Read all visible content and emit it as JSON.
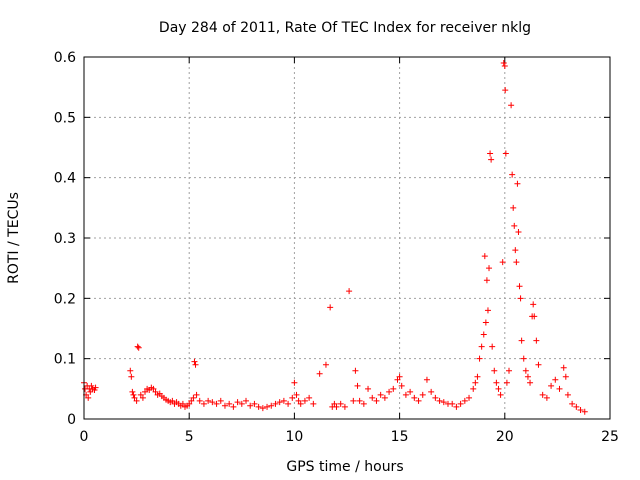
{
  "chart_data": {
    "type": "scatter",
    "title": "Day 284 of 2011, Rate Of TEC Index for receiver nklg",
    "xlabel": "GPS time / hours",
    "ylabel": "ROTI / TECUs",
    "xlim": [
      0,
      25
    ],
    "ylim": [
      0,
      0.6
    ],
    "x_ticks": [
      0,
      5,
      10,
      15,
      20,
      25
    ],
    "x_tick_labels": [
      "0",
      "5",
      "10",
      "15",
      "20",
      "25"
    ],
    "y_ticks": [
      0,
      0.1,
      0.2,
      0.3,
      0.4,
      0.5,
      0.6
    ],
    "y_tick_labels": [
      "0",
      "0.1",
      "0.2",
      "0.3",
      "0.4",
      "0.5",
      "0.6"
    ],
    "grid": true,
    "marker": "+",
    "marker_color": "#ff0000",
    "series": [
      {
        "name": "ROTI",
        "points": [
          [
            0.0,
            0.06
          ],
          [
            0.05,
            0.05
          ],
          [
            0.1,
            0.04
          ],
          [
            0.15,
            0.055
          ],
          [
            0.2,
            0.035
          ],
          [
            0.25,
            0.05
          ],
          [
            0.3,
            0.045
          ],
          [
            0.35,
            0.055
          ],
          [
            0.4,
            0.05
          ],
          [
            0.5,
            0.048
          ],
          [
            0.55,
            0.052
          ],
          [
            2.2,
            0.08
          ],
          [
            2.25,
            0.07
          ],
          [
            2.3,
            0.045
          ],
          [
            2.35,
            0.04
          ],
          [
            2.4,
            0.035
          ],
          [
            2.5,
            0.03
          ],
          [
            2.55,
            0.12
          ],
          [
            2.6,
            0.118
          ],
          [
            2.7,
            0.04
          ],
          [
            2.8,
            0.035
          ],
          [
            2.9,
            0.045
          ],
          [
            3.0,
            0.05
          ],
          [
            3.1,
            0.048
          ],
          [
            3.2,
            0.052
          ],
          [
            3.3,
            0.05
          ],
          [
            3.4,
            0.045
          ],
          [
            3.5,
            0.04
          ],
          [
            3.6,
            0.042
          ],
          [
            3.7,
            0.038
          ],
          [
            3.8,
            0.035
          ],
          [
            3.9,
            0.032
          ],
          [
            4.0,
            0.03
          ],
          [
            4.1,
            0.028
          ],
          [
            4.2,
            0.03
          ],
          [
            4.3,
            0.025
          ],
          [
            4.4,
            0.028
          ],
          [
            4.5,
            0.025
          ],
          [
            4.6,
            0.022
          ],
          [
            4.7,
            0.025
          ],
          [
            4.8,
            0.02
          ],
          [
            4.9,
            0.022
          ],
          [
            5.0,
            0.025
          ],
          [
            5.1,
            0.03
          ],
          [
            5.2,
            0.035
          ],
          [
            5.25,
            0.095
          ],
          [
            5.3,
            0.09
          ],
          [
            5.35,
            0.04
          ],
          [
            5.5,
            0.03
          ],
          [
            5.7,
            0.025
          ],
          [
            5.9,
            0.03
          ],
          [
            6.1,
            0.028
          ],
          [
            6.3,
            0.025
          ],
          [
            6.5,
            0.03
          ],
          [
            6.7,
            0.022
          ],
          [
            6.9,
            0.025
          ],
          [
            7.1,
            0.02
          ],
          [
            7.3,
            0.028
          ],
          [
            7.5,
            0.025
          ],
          [
            7.7,
            0.03
          ],
          [
            7.9,
            0.022
          ],
          [
            8.1,
            0.025
          ],
          [
            8.3,
            0.02
          ],
          [
            8.5,
            0.018
          ],
          [
            8.7,
            0.02
          ],
          [
            8.9,
            0.022
          ],
          [
            9.1,
            0.025
          ],
          [
            9.3,
            0.028
          ],
          [
            9.5,
            0.03
          ],
          [
            9.7,
            0.025
          ],
          [
            9.9,
            0.035
          ],
          [
            10.0,
            0.06
          ],
          [
            10.1,
            0.04
          ],
          [
            10.2,
            0.03
          ],
          [
            10.3,
            0.025
          ],
          [
            10.5,
            0.03
          ],
          [
            10.7,
            0.035
          ],
          [
            10.9,
            0.025
          ],
          [
            11.2,
            0.075
          ],
          [
            11.5,
            0.09
          ],
          [
            11.7,
            0.185
          ],
          [
            11.8,
            0.02
          ],
          [
            11.9,
            0.025
          ],
          [
            12.0,
            0.02
          ],
          [
            12.2,
            0.025
          ],
          [
            12.4,
            0.02
          ],
          [
            12.6,
            0.212
          ],
          [
            12.8,
            0.03
          ],
          [
            12.9,
            0.08
          ],
          [
            13.0,
            0.055
          ],
          [
            13.1,
            0.03
          ],
          [
            13.3,
            0.025
          ],
          [
            13.5,
            0.05
          ],
          [
            13.7,
            0.035
          ],
          [
            13.9,
            0.03
          ],
          [
            14.1,
            0.04
          ],
          [
            14.3,
            0.035
          ],
          [
            14.5,
            0.045
          ],
          [
            14.7,
            0.05
          ],
          [
            14.9,
            0.065
          ],
          [
            15.0,
            0.07
          ],
          [
            15.1,
            0.055
          ],
          [
            15.3,
            0.04
          ],
          [
            15.5,
            0.045
          ],
          [
            15.7,
            0.035
          ],
          [
            15.9,
            0.03
          ],
          [
            16.1,
            0.04
          ],
          [
            16.3,
            0.065
          ],
          [
            16.5,
            0.045
          ],
          [
            16.7,
            0.035
          ],
          [
            16.9,
            0.03
          ],
          [
            17.1,
            0.028
          ],
          [
            17.3,
            0.025
          ],
          [
            17.5,
            0.025
          ],
          [
            17.7,
            0.02
          ],
          [
            17.9,
            0.025
          ],
          [
            18.1,
            0.03
          ],
          [
            18.3,
            0.035
          ],
          [
            18.5,
            0.05
          ],
          [
            18.6,
            0.06
          ],
          [
            18.7,
            0.07
          ],
          [
            18.8,
            0.1
          ],
          [
            18.9,
            0.12
          ],
          [
            19.0,
            0.14
          ],
          [
            19.05,
            0.27
          ],
          [
            19.1,
            0.16
          ],
          [
            19.15,
            0.23
          ],
          [
            19.2,
            0.18
          ],
          [
            19.25,
            0.25
          ],
          [
            19.3,
            0.44
          ],
          [
            19.35,
            0.43
          ],
          [
            19.4,
            0.12
          ],
          [
            19.5,
            0.08
          ],
          [
            19.6,
            0.06
          ],
          [
            19.7,
            0.05
          ],
          [
            19.8,
            0.04
          ],
          [
            19.9,
            0.26
          ],
          [
            19.95,
            0.59
          ],
          [
            20.0,
            0.585
          ],
          [
            20.02,
            0.545
          ],
          [
            20.05,
            0.44
          ],
          [
            20.1,
            0.06
          ],
          [
            20.2,
            0.08
          ],
          [
            20.3,
            0.52
          ],
          [
            20.35,
            0.405
          ],
          [
            20.4,
            0.35
          ],
          [
            20.45,
            0.32
          ],
          [
            20.5,
            0.28
          ],
          [
            20.55,
            0.26
          ],
          [
            20.6,
            0.39
          ],
          [
            20.65,
            0.31
          ],
          [
            20.7,
            0.22
          ],
          [
            20.75,
            0.2
          ],
          [
            20.8,
            0.13
          ],
          [
            20.9,
            0.1
          ],
          [
            21.0,
            0.08
          ],
          [
            21.1,
            0.07
          ],
          [
            21.2,
            0.06
          ],
          [
            21.3,
            0.17
          ],
          [
            21.35,
            0.19
          ],
          [
            21.4,
            0.17
          ],
          [
            21.5,
            0.13
          ],
          [
            21.6,
            0.09
          ],
          [
            21.8,
            0.04
          ],
          [
            22.0,
            0.035
          ],
          [
            22.2,
            0.055
          ],
          [
            22.4,
            0.065
          ],
          [
            22.6,
            0.05
          ],
          [
            22.8,
            0.085
          ],
          [
            22.9,
            0.07
          ],
          [
            23.0,
            0.04
          ],
          [
            23.2,
            0.025
          ],
          [
            23.4,
            0.02
          ],
          [
            23.6,
            0.015
          ],
          [
            23.8,
            0.012
          ]
        ]
      }
    ]
  }
}
